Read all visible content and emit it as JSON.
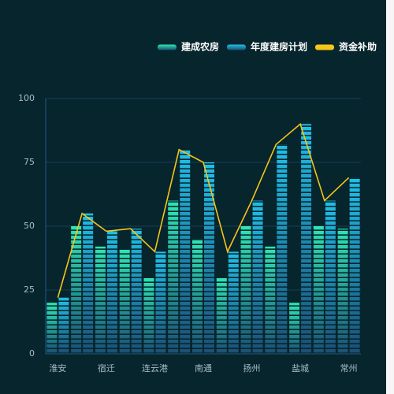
{
  "chart_data": {
    "type": "bar",
    "categories": [
      "淮安",
      null,
      "宿迁",
      null,
      "连云港",
      null,
      "南通",
      null,
      "扬州",
      null,
      "盐城",
      null,
      "常州"
    ],
    "series": [
      {
        "name": "建成农房",
        "type": "bar",
        "color": "#2ee6b4",
        "values": [
          20,
          50,
          42,
          41,
          30,
          60,
          45,
          30,
          50,
          42,
          20,
          50,
          49
        ]
      },
      {
        "name": "年度建房计划",
        "type": "bar",
        "color": "#1fc0e8",
        "values": [
          22,
          55,
          48,
          49,
          40,
          80,
          75,
          40,
          60,
          82,
          90,
          60,
          69
        ]
      },
      {
        "name": "资金补助",
        "type": "line",
        "color": "#f5c518",
        "values": [
          22,
          55,
          48,
          49,
          40,
          80,
          75,
          40,
          60,
          82,
          90,
          60,
          69
        ]
      }
    ],
    "ylim": [
      0,
      100
    ],
    "yticks": [
      0,
      25,
      50,
      75,
      100
    ],
    "grid": true,
    "legend": "top-right"
  }
}
